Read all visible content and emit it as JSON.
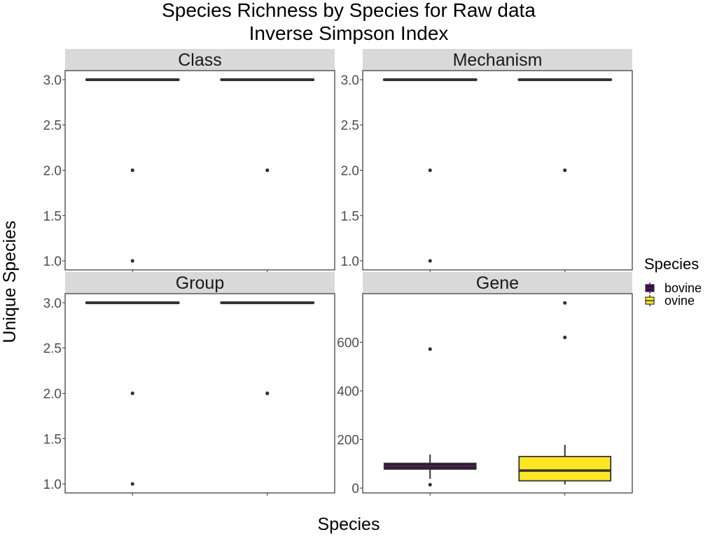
{
  "chart_data": {
    "type": "box",
    "title": [
      "Species Richness by Species for Raw data",
      "Inverse Simpson Index"
    ],
    "xlabel": "Species",
    "ylabel": "Unique Species",
    "legend": {
      "title": "Species",
      "position": "right",
      "entries": [
        {
          "label": "bovine",
          "color": "#440154"
        },
        {
          "label": "ovine",
          "color": "#FDE725"
        }
      ]
    },
    "categories": [
      "bovine",
      "ovine"
    ],
    "x_ticks_labels_shown": false,
    "facets": [
      {
        "name": "Class",
        "ylim": [
          0.9,
          3.1
        ],
        "yticks": [
          1.0,
          1.5,
          2.0,
          2.5,
          3.0
        ],
        "ytick_labels": [
          "1.0",
          "1.5",
          "2.0",
          "2.5",
          "3.0"
        ],
        "boxes": [
          {
            "species": "bovine",
            "q1": 3.0,
            "median": 3.0,
            "q3": 3.0,
            "whisker_low": 3.0,
            "whisker_high": 3.0,
            "outliers": [
              2.0,
              1.0
            ]
          },
          {
            "species": "ovine",
            "q1": 3.0,
            "median": 3.0,
            "q3": 3.0,
            "whisker_low": 3.0,
            "whisker_high": 3.0,
            "outliers": [
              2.0
            ]
          }
        ]
      },
      {
        "name": "Mechanism",
        "ylim": [
          0.9,
          3.1
        ],
        "yticks": [
          1.0,
          1.5,
          2.0,
          2.5,
          3.0
        ],
        "ytick_labels": [
          "1.0",
          "1.5",
          "2.0",
          "2.5",
          "3.0"
        ],
        "boxes": [
          {
            "species": "bovine",
            "q1": 3.0,
            "median": 3.0,
            "q3": 3.0,
            "whisker_low": 3.0,
            "whisker_high": 3.0,
            "outliers": [
              2.0,
              1.0
            ]
          },
          {
            "species": "ovine",
            "q1": 3.0,
            "median": 3.0,
            "q3": 3.0,
            "whisker_low": 3.0,
            "whisker_high": 3.0,
            "outliers": [
              2.0
            ]
          }
        ]
      },
      {
        "name": "Group",
        "ylim": [
          0.9,
          3.1
        ],
        "yticks": [
          1.0,
          1.5,
          2.0,
          2.5,
          3.0
        ],
        "ytick_labels": [
          "1.0",
          "1.5",
          "2.0",
          "2.5",
          "3.0"
        ],
        "boxes": [
          {
            "species": "bovine",
            "q1": 3.0,
            "median": 3.0,
            "q3": 3.0,
            "whisker_low": 3.0,
            "whisker_high": 3.0,
            "outliers": [
              2.0,
              1.0
            ]
          },
          {
            "species": "ovine",
            "q1": 3.0,
            "median": 3.0,
            "q3": 3.0,
            "whisker_low": 3.0,
            "whisker_high": 3.0,
            "outliers": [
              2.0
            ]
          }
        ]
      },
      {
        "name": "Gene",
        "ylim": [
          -20,
          800
        ],
        "yticks": [
          0,
          200,
          400,
          600
        ],
        "ytick_labels": [
          "0",
          "200",
          "400",
          "600"
        ],
        "boxes": [
          {
            "species": "bovine",
            "q1": 78,
            "median": 90,
            "q3": 102,
            "whisker_low": 38,
            "whisker_high": 138,
            "outliers": [
              572,
              14
            ]
          },
          {
            "species": "ovine",
            "q1": 30,
            "median": 72,
            "q3": 130,
            "whisker_low": 15,
            "whisker_high": 178,
            "outliers": [
              762,
              620
            ]
          }
        ]
      }
    ]
  }
}
